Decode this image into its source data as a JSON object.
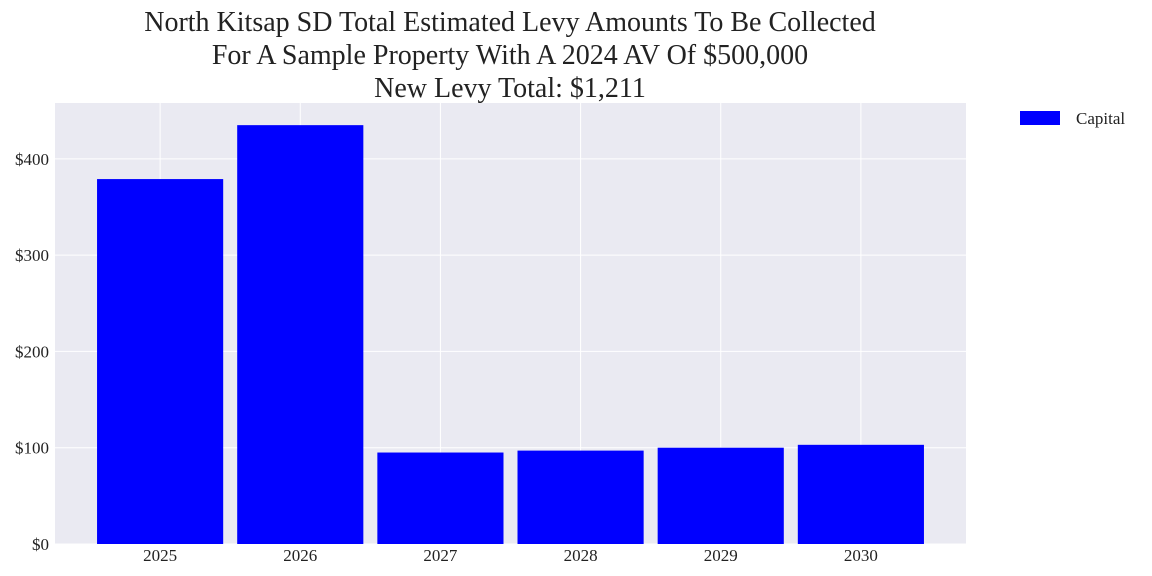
{
  "chart_data": {
    "type": "bar",
    "title": [
      "North Kitsap SD Total Estimated Levy Amounts To Be Collected",
      "For A Sample Property With A 2024 AV Of $500,000",
      "New Levy Total: $1,211"
    ],
    "xlabel": "",
    "ylabel": "",
    "categories": [
      "2025",
      "2026",
      "2027",
      "2028",
      "2029",
      "2030"
    ],
    "series": [
      {
        "name": "Capital",
        "values": [
          379,
          435,
          95,
          97,
          100,
          103
        ],
        "color": "#0000ff"
      }
    ],
    "ylim": [
      0,
      458
    ],
    "yticks": [
      0,
      100,
      200,
      300,
      400
    ],
    "ytick_labels": [
      "$0",
      "$100",
      "$200",
      "$300",
      "$400"
    ],
    "grid": true,
    "legend": "outside-top-right",
    "background_color": "#eaeaf2"
  }
}
